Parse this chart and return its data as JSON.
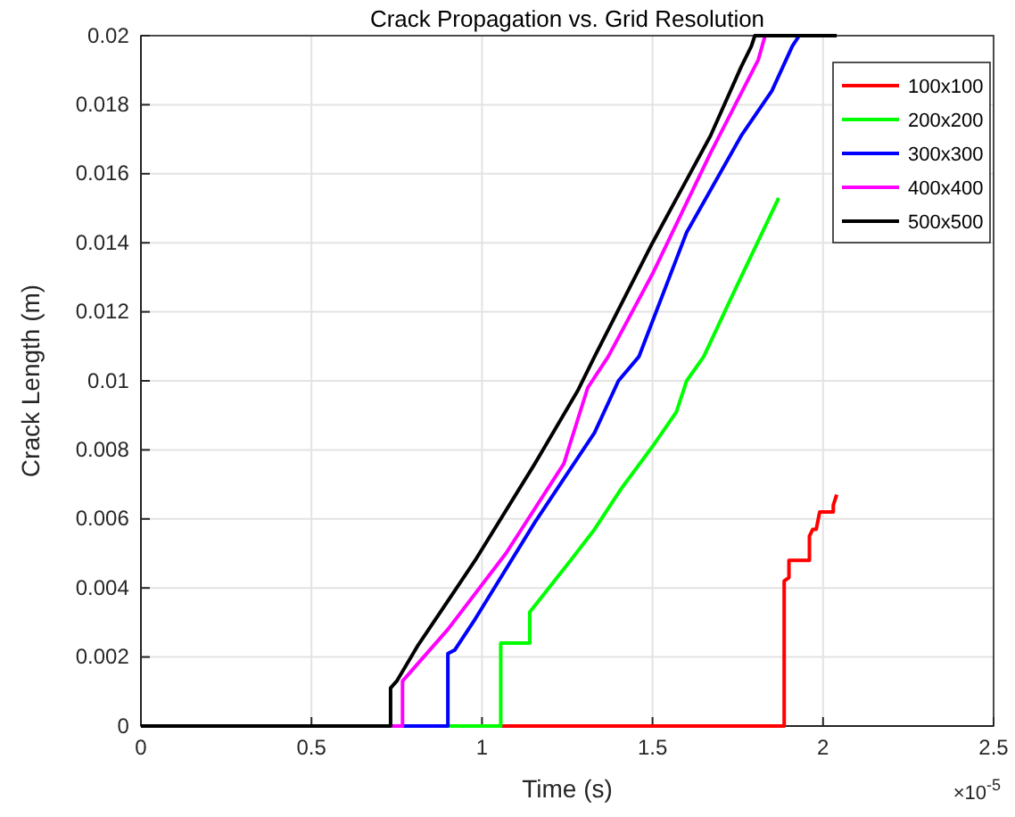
{
  "chart_data": {
    "type": "line",
    "title": "Crack Propagation vs. Grid Resolution",
    "xlabel": "Time (s)",
    "ylabel": "Crack Length (m)",
    "annotations": [
      "×10$^{-5}$"
    ],
    "xlim": [
      0,
      2.5
    ],
    "xticks": [
      0,
      0.5,
      1,
      1.5,
      2,
      2.5
    ],
    "ylim": [
      0,
      0.02
    ],
    "yticks": [
      0,
      0.002,
      0.004,
      0.006,
      0.008,
      0.01,
      0.012,
      0.014,
      0.016,
      0.018,
      0.02
    ],
    "grid": true,
    "legend": "top right",
    "line_style": "solid",
    "marker": "none",
    "series": [
      {
        "name": "100x100",
        "color": "#ff0000",
        "x": [
          0,
          1.886,
          1.886,
          1.9,
          1.9,
          1.96,
          1.96,
          1.97,
          1.98,
          1.99,
          2.03,
          2.03,
          2.04
        ],
        "values": [
          0,
          0,
          0.0042,
          0.0043,
          0.0048,
          0.0048,
          0.0055,
          0.0057,
          0.0057,
          0.0062,
          0.0062,
          0.0064,
          0.0067
        ]
      },
      {
        "name": "200x200",
        "color": "#00ff00",
        "x": [
          0,
          1.055,
          1.055,
          1.14,
          1.14,
          1.18,
          1.22,
          1.26,
          1.33,
          1.41,
          1.5,
          1.57,
          1.6,
          1.65,
          1.74,
          1.87
        ],
        "values": [
          0,
          0,
          0.0024,
          0.0024,
          0.0033,
          0.0038,
          0.0043,
          0.0048,
          0.0057,
          0.0069,
          0.0081,
          0.0091,
          0.01,
          0.0107,
          0.0126,
          0.0153
        ]
      },
      {
        "name": "300x300",
        "color": "#0000ff",
        "x": [
          0,
          0.9,
          0.9,
          0.92,
          0.98,
          1.155,
          1.33,
          1.4,
          1.46,
          1.6,
          1.76,
          1.85,
          1.91,
          1.93
        ],
        "values": [
          0,
          0,
          0.0021,
          0.0022,
          0.0031,
          0.0059,
          0.0085,
          0.01,
          0.0107,
          0.0143,
          0.0171,
          0.0184,
          0.0197,
          0.02
        ]
      },
      {
        "name": "400x400",
        "color": "#ff00ff",
        "x": [
          0,
          0.767,
          0.767,
          0.9,
          1.07,
          1.24,
          1.31,
          1.37,
          1.5,
          1.67,
          1.81,
          1.83
        ],
        "values": [
          0,
          0,
          0.0013,
          0.0028,
          0.005,
          0.0076,
          0.0098,
          0.0107,
          0.0131,
          0.0166,
          0.0193,
          0.02
        ]
      },
      {
        "name": "500x500",
        "color": "#000000",
        "x": [
          0,
          0.732,
          0.732,
          0.75,
          0.81,
          0.98,
          1.155,
          1.28,
          1.33,
          1.5,
          1.67,
          1.76,
          1.79,
          1.8,
          2.04
        ],
        "values": [
          0,
          0,
          0.0011,
          0.0013,
          0.0023,
          0.0048,
          0.0076,
          0.0097,
          0.0107,
          0.014,
          0.0171,
          0.0191,
          0.0197,
          0.02,
          0.02
        ]
      }
    ]
  }
}
